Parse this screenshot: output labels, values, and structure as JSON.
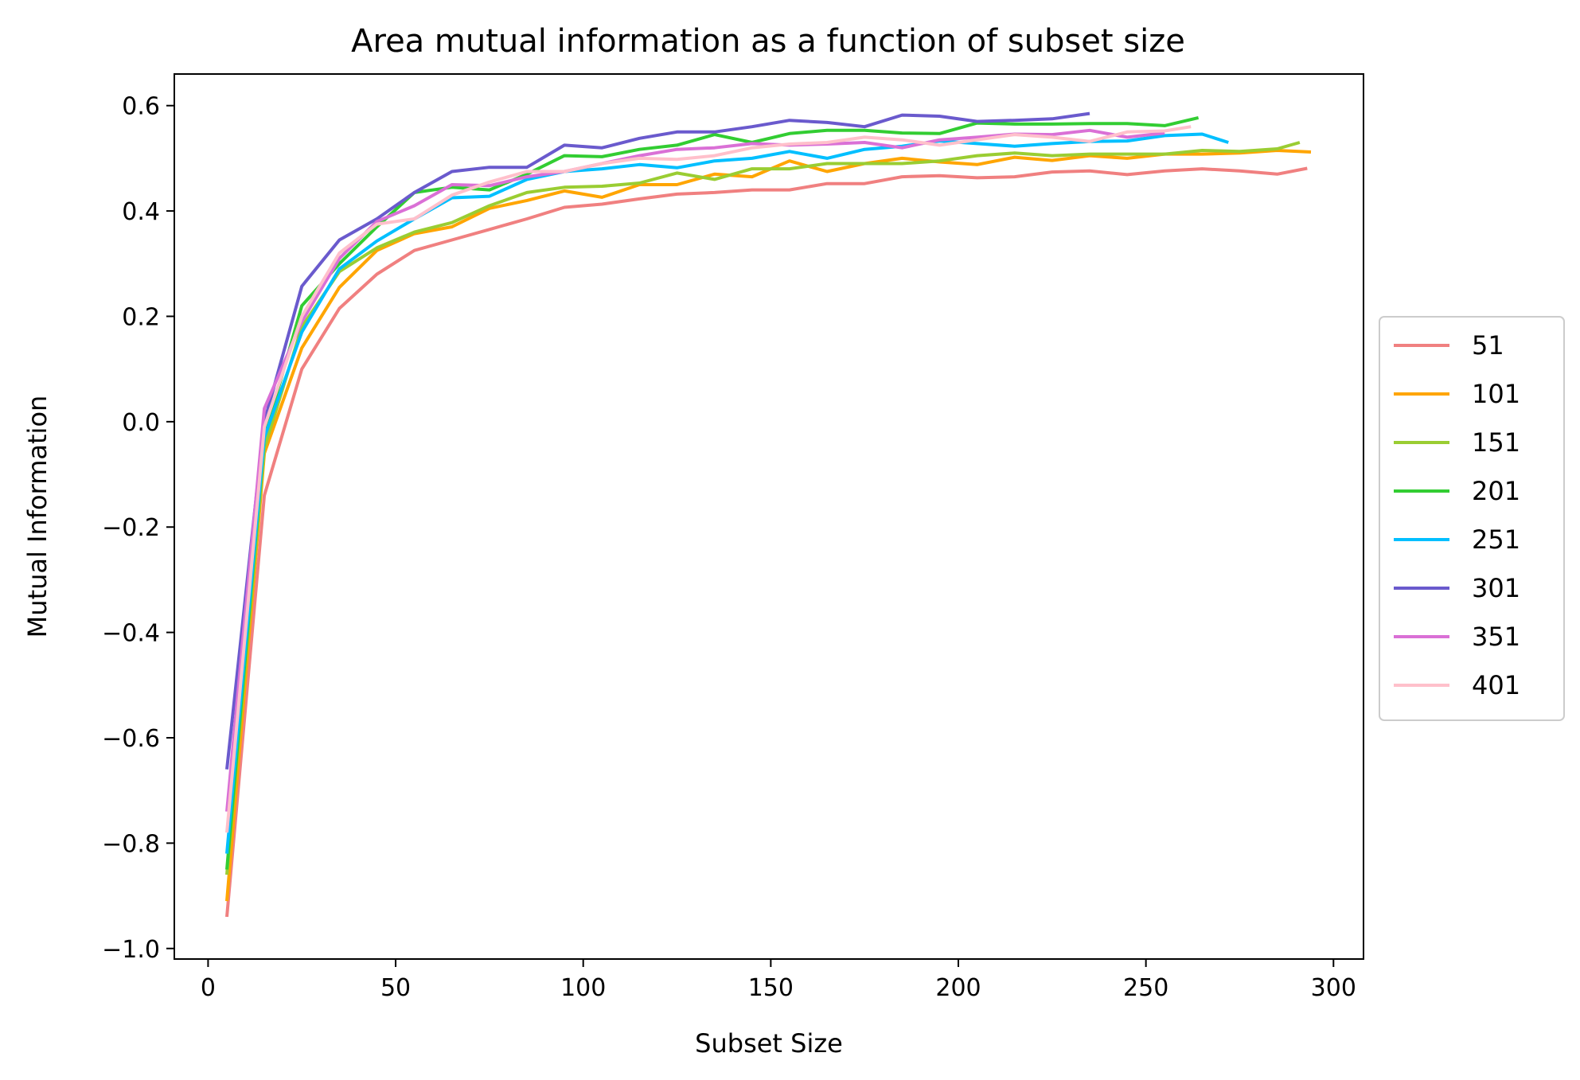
{
  "chart_data": {
    "type": "line",
    "title": "Area mutual information as a function of subset size",
    "xlabel": "Subset Size",
    "ylabel": "Mutual Information",
    "xlim": [
      -9,
      308
    ],
    "ylim": [
      -1.02,
      0.66
    ],
    "xticks": [
      0,
      50,
      100,
      150,
      200,
      250,
      300
    ],
    "xtick_labels": [
      "0",
      "50",
      "100",
      "150",
      "200",
      "250",
      "300"
    ],
    "yticks": [
      -1.0,
      -0.8,
      -0.6,
      -0.4,
      -0.2,
      0.0,
      0.2,
      0.4,
      0.6
    ],
    "ytick_labels": [
      "−1.0",
      "−0.8",
      "−0.6",
      "−0.4",
      "−0.2",
      "0.0",
      "0.2",
      "0.4",
      "0.6"
    ],
    "grid": false,
    "legend_position": "center-right-outside",
    "series": [
      {
        "name": "51",
        "color": "#f08080",
        "x": [
          5,
          15,
          25,
          35,
          45,
          55,
          65,
          75,
          85,
          95,
          105,
          115,
          125,
          135,
          145,
          155,
          165,
          175,
          185,
          195,
          205,
          215,
          225,
          235,
          245,
          255,
          265,
          275,
          285,
          293
        ],
        "y": [
          -0.94,
          -0.14,
          0.1,
          0.215,
          0.28,
          0.325,
          0.345,
          0.365,
          0.385,
          0.407,
          0.413,
          0.423,
          0.432,
          0.435,
          0.44,
          0.44,
          0.452,
          0.452,
          0.465,
          0.467,
          0.463,
          0.465,
          0.474,
          0.476,
          0.469,
          0.476,
          0.48,
          0.476,
          0.47,
          0.481
        ]
      },
      {
        "name": "101",
        "color": "#ffa500",
        "x": [
          5,
          15,
          25,
          35,
          45,
          55,
          65,
          75,
          85,
          95,
          105,
          115,
          125,
          135,
          145,
          155,
          165,
          175,
          185,
          195,
          205,
          215,
          225,
          235,
          245,
          255,
          265,
          275,
          285,
          294
        ],
        "y": [
          -0.91,
          -0.06,
          0.14,
          0.255,
          0.325,
          0.357,
          0.37,
          0.405,
          0.42,
          0.438,
          0.426,
          0.45,
          0.45,
          0.47,
          0.465,
          0.495,
          0.475,
          0.49,
          0.5,
          0.493,
          0.488,
          0.502,
          0.496,
          0.505,
          0.5,
          0.508,
          0.508,
          0.51,
          0.515,
          0.512
        ]
      },
      {
        "name": "151",
        "color": "#9acd32",
        "x": [
          5,
          15,
          25,
          35,
          45,
          55,
          65,
          75,
          85,
          95,
          105,
          115,
          125,
          135,
          145,
          155,
          165,
          175,
          185,
          195,
          205,
          215,
          225,
          235,
          245,
          255,
          265,
          275,
          285,
          291
        ],
        "y": [
          -0.86,
          -0.05,
          0.18,
          0.285,
          0.33,
          0.36,
          0.378,
          0.41,
          0.435,
          0.445,
          0.447,
          0.453,
          0.472,
          0.46,
          0.48,
          0.48,
          0.49,
          0.49,
          0.49,
          0.495,
          0.505,
          0.51,
          0.505,
          0.508,
          0.508,
          0.508,
          0.515,
          0.513,
          0.518,
          0.53
        ]
      },
      {
        "name": "201",
        "color": "#32cd32",
        "x": [
          5,
          15,
          25,
          35,
          45,
          55,
          65,
          75,
          85,
          95,
          105,
          115,
          125,
          135,
          145,
          155,
          165,
          175,
          185,
          195,
          205,
          215,
          225,
          235,
          245,
          255,
          264
        ],
        "y": [
          -0.85,
          -0.03,
          0.22,
          0.3,
          0.37,
          0.435,
          0.445,
          0.44,
          0.47,
          0.505,
          0.503,
          0.517,
          0.525,
          0.545,
          0.53,
          0.547,
          0.553,
          0.553,
          0.548,
          0.547,
          0.567,
          0.565,
          0.565,
          0.566,
          0.566,
          0.562,
          0.577
        ]
      },
      {
        "name": "251",
        "color": "#00bfff",
        "x": [
          5,
          15,
          25,
          35,
          45,
          55,
          65,
          75,
          85,
          95,
          105,
          115,
          125,
          135,
          145,
          155,
          165,
          175,
          185,
          195,
          205,
          215,
          225,
          235,
          245,
          255,
          265,
          272
        ],
        "y": [
          -0.82,
          -0.03,
          0.17,
          0.29,
          0.343,
          0.385,
          0.425,
          0.428,
          0.46,
          0.475,
          0.48,
          0.488,
          0.482,
          0.495,
          0.5,
          0.513,
          0.5,
          0.517,
          0.523,
          0.533,
          0.528,
          0.523,
          0.528,
          0.532,
          0.533,
          0.543,
          0.546,
          0.53
        ]
      },
      {
        "name": "301",
        "color": "#6a5acd",
        "x": [
          5,
          15,
          25,
          35,
          45,
          55,
          65,
          75,
          85,
          95,
          105,
          115,
          125,
          135,
          145,
          155,
          165,
          175,
          185,
          195,
          205,
          215,
          225,
          235
        ],
        "y": [
          -0.66,
          0.0,
          0.257,
          0.345,
          0.385,
          0.435,
          0.475,
          0.483,
          0.483,
          0.525,
          0.52,
          0.538,
          0.55,
          0.55,
          0.56,
          0.572,
          0.568,
          0.56,
          0.582,
          0.58,
          0.57,
          0.572,
          0.575,
          0.585
        ]
      },
      {
        "name": "351",
        "color": "#da70d6",
        "x": [
          5,
          15,
          25,
          35,
          45,
          55,
          65,
          75,
          85,
          95,
          105,
          115,
          125,
          135,
          145,
          155,
          165,
          175,
          185,
          195,
          205,
          215,
          225,
          235,
          245,
          255
        ],
        "y": [
          -0.74,
          0.025,
          0.19,
          0.31,
          0.38,
          0.41,
          0.45,
          0.448,
          0.465,
          0.475,
          0.49,
          0.505,
          0.517,
          0.52,
          0.528,
          0.525,
          0.527,
          0.53,
          0.52,
          0.535,
          0.54,
          0.546,
          0.545,
          0.553,
          0.54,
          0.548
        ]
      },
      {
        "name": "401",
        "color": "#ffc0cb",
        "x": [
          5,
          15,
          25,
          35,
          45,
          55,
          65,
          75,
          85,
          95,
          105,
          115,
          125,
          135,
          145,
          155,
          165,
          175,
          185,
          195,
          205,
          215,
          225,
          235,
          245,
          255,
          262
        ],
        "y": [
          -0.78,
          -0.01,
          0.2,
          0.32,
          0.375,
          0.385,
          0.43,
          0.455,
          0.475,
          0.475,
          0.49,
          0.5,
          0.498,
          0.505,
          0.52,
          0.527,
          0.53,
          0.54,
          0.535,
          0.525,
          0.535,
          0.545,
          0.54,
          0.532,
          0.55,
          0.552,
          0.56
        ]
      }
    ]
  }
}
